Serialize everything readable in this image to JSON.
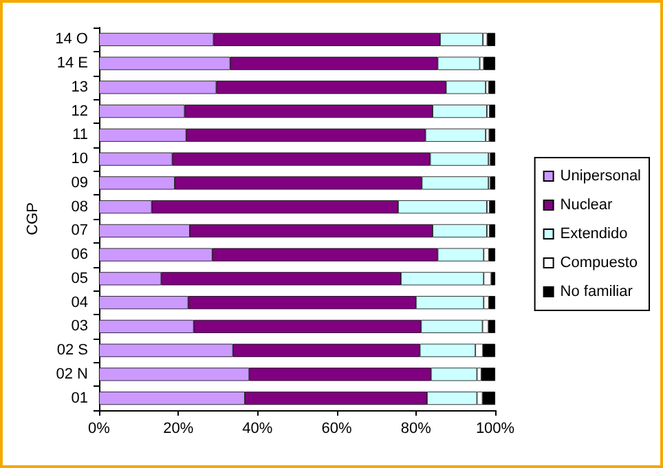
{
  "chart_data": {
    "type": "bar",
    "orientation": "horizontal",
    "stacked": true,
    "ylabel": "CGP",
    "legend": "right",
    "grid": false,
    "categories": [
      "14 O",
      "14 E",
      "13",
      "12",
      "11",
      "10",
      "09",
      "08",
      "07",
      "06",
      "05",
      "04",
      "03",
      "02 S",
      "02 N",
      "01"
    ],
    "series": [
      {
        "name": "Unipersonal",
        "color": "#cc99ff",
        "values": [
          28.9,
          33.1,
          29.6,
          21.6,
          22.0,
          18.5,
          19.1,
          13.3,
          22.9,
          28.6,
          15.7,
          22.5,
          23.9,
          33.8,
          37.9,
          36.8
        ]
      },
      {
        "name": "Nuclear",
        "color": "#800080",
        "values": [
          57.2,
          52.4,
          58.0,
          62.6,
          60.4,
          65.1,
          62.4,
          62.2,
          61.3,
          56.9,
          60.5,
          57.5,
          57.4,
          47.2,
          45.9,
          46.0
        ]
      },
      {
        "name": "Extendido",
        "color": "#ccffff",
        "values": [
          10.8,
          10.6,
          10.0,
          13.7,
          15.2,
          14.7,
          16.8,
          22.4,
          13.7,
          11.6,
          20.9,
          17.1,
          15.5,
          14.0,
          11.6,
          12.6
        ]
      },
      {
        "name": "Compuesto",
        "color": "#ffffff",
        "values": [
          1.1,
          1.0,
          0.8,
          0.7,
          0.9,
          0.5,
          0.5,
          0.7,
          0.7,
          1.3,
          1.9,
          1.3,
          1.5,
          1.9,
          1.1,
          1.4
        ]
      },
      {
        "name": "No familiar",
        "color": "#000000",
        "values": [
          2.0,
          2.9,
          1.6,
          1.4,
          1.5,
          1.2,
          1.2,
          1.4,
          1.4,
          1.6,
          1.0,
          1.6,
          1.7,
          3.1,
          3.5,
          3.2
        ]
      }
    ],
    "xlim": [
      0,
      100
    ],
    "xticks": [
      {
        "value": 0,
        "label": "0%"
      },
      {
        "value": 20,
        "label": "20%"
      },
      {
        "value": 40,
        "label": "40%"
      },
      {
        "value": 60,
        "label": "60%"
      },
      {
        "value": 80,
        "label": "80%"
      },
      {
        "value": 100,
        "label": "100%"
      }
    ]
  }
}
